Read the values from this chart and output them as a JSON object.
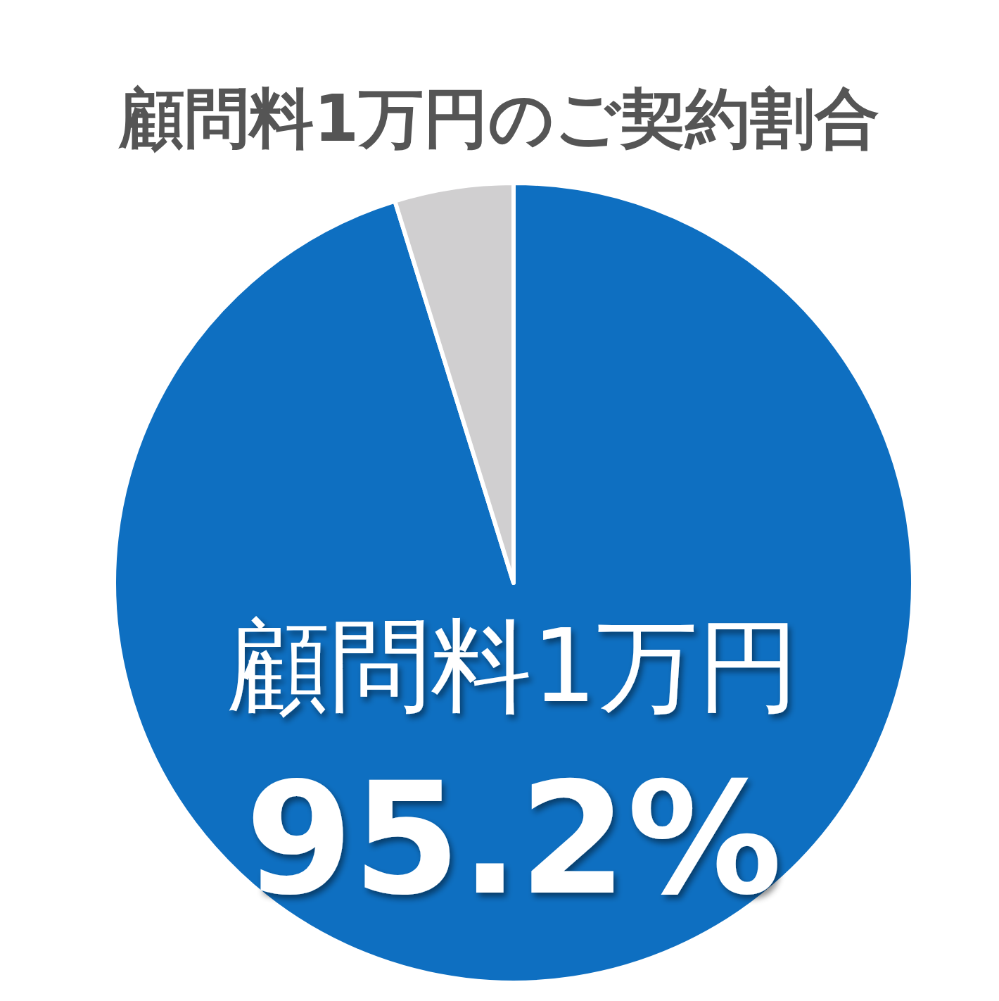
{
  "chart_data": {
    "type": "pie",
    "title": "顧問料1万円のご契約割合",
    "categories": [
      "顧問料1万円",
      null
    ],
    "values": [
      95.2,
      4.8
    ],
    "colors": [
      "#0e6fc1",
      "#d0cfd0"
    ],
    "value_labels": [
      "95.2%",
      null
    ]
  }
}
